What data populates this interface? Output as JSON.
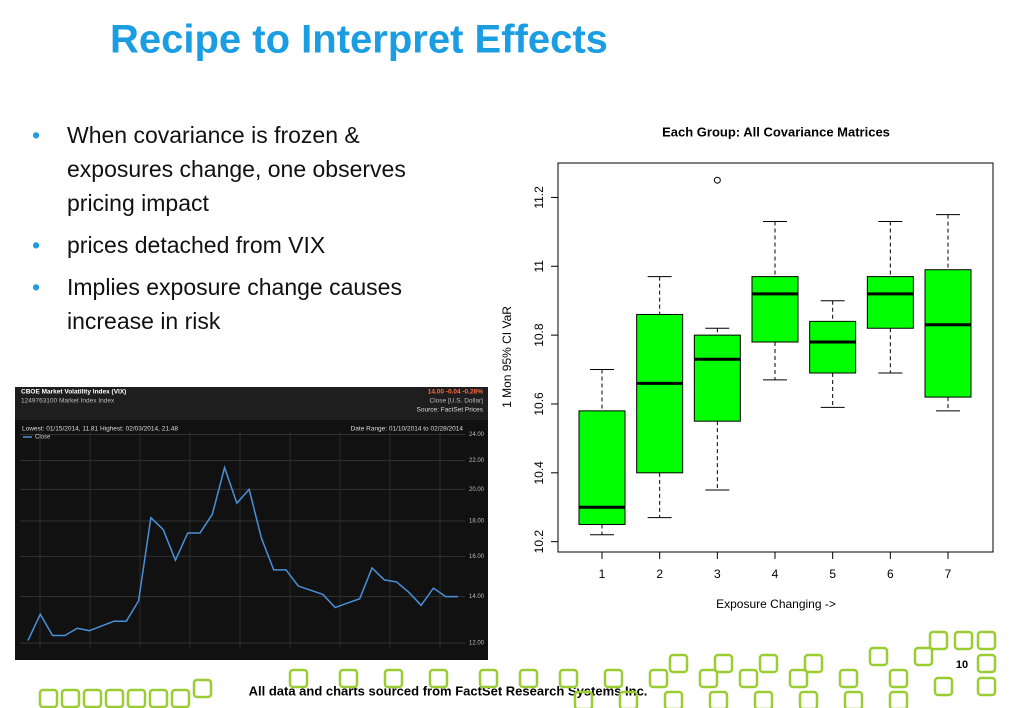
{
  "title": "Recipe to Interpret Effects",
  "bullets": [
    "When covariance is frozen & exposures change, one observes pricing impact",
    "prices detached from VIX",
    "Implies exposure change causes increase in risk"
  ],
  "footer": "All data and charts sourced from FactSet Research Systems Inc.",
  "page_number": "10",
  "chart_data": [
    {
      "type": "boxplot",
      "title": "Each Group: All Covariance Matrices",
      "x_label": "Exposure Changing ->",
      "y_label": "1 Mon 95% CI VaR",
      "categories": [
        "1",
        "2",
        "3",
        "4",
        "5",
        "6",
        "7"
      ],
      "boxes": [
        {
          "min": 10.22,
          "q1": 10.25,
          "median": 10.3,
          "q3": 10.58,
          "max": 10.7
        },
        {
          "min": 10.27,
          "q1": 10.4,
          "median": 10.66,
          "q3": 10.86,
          "max": 10.97
        },
        {
          "min": 10.35,
          "q1": 10.55,
          "median": 10.73,
          "q3": 10.8,
          "max": 10.82
        },
        {
          "min": 10.67,
          "q1": 10.78,
          "median": 10.92,
          "q3": 10.97,
          "max": 11.13
        },
        {
          "min": 10.59,
          "q1": 10.69,
          "median": 10.78,
          "q3": 10.84,
          "max": 10.9
        },
        {
          "min": 10.69,
          "q1": 10.82,
          "median": 10.92,
          "q3": 10.97,
          "max": 11.13
        },
        {
          "min": 10.58,
          "q1": 10.62,
          "median": 10.83,
          "q3": 10.99,
          "max": 11.15
        }
      ],
      "outliers": [
        [],
        [],
        [
          11.25
        ],
        [],
        [],
        [],
        []
      ],
      "color": "#00ff00",
      "ylim": [
        10.17,
        11.3
      ],
      "yticks": [
        10.2,
        10.4,
        10.6,
        10.8,
        11.0,
        11.2
      ]
    },
    {
      "type": "line",
      "title": "CBOE Market Volatility Index (VIX)",
      "subtitle": "1249763100 Market Index Index",
      "quote": "14.00 -0.04 -0.28%",
      "price_note": "Close [U.S. Dollar]",
      "source": "Source: FactSet Prices",
      "range_note": "Lowest: 01/15/2014, 11.81  Highest: 02/03/2014, 21.48",
      "date_range": "Date Range: 01/10/2014 to 02/28/2014",
      "series": [
        {
          "name": "Close",
          "color": "#4a90d9",
          "values": [
            12.1,
            13.2,
            12.3,
            12.3,
            12.6,
            12.5,
            12.7,
            12.9,
            12.9,
            13.8,
            18.2,
            17.5,
            15.8,
            17.3,
            17.3,
            18.4,
            21.5,
            19.1,
            20.0,
            17.0,
            15.3,
            15.3,
            14.5,
            14.3,
            14.1,
            13.5,
            13.7,
            13.9,
            15.4,
            14.8,
            14.7,
            14.2,
            13.6,
            14.4,
            14.0,
            14.0
          ]
        }
      ],
      "log_scale": true,
      "grid": true,
      "ylim": [
        11.8,
        24.2
      ],
      "yticks": [
        {
          "value": 12,
          "label": "12.00"
        },
        {
          "value": 14,
          "label": "14.00"
        },
        {
          "value": 16,
          "label": "16.00"
        },
        {
          "value": 18,
          "label": "18.00"
        },
        {
          "value": 20,
          "label": "20.00"
        },
        {
          "value": 22,
          "label": "22.00"
        },
        {
          "value": 24,
          "label": "24.00"
        }
      ]
    }
  ]
}
